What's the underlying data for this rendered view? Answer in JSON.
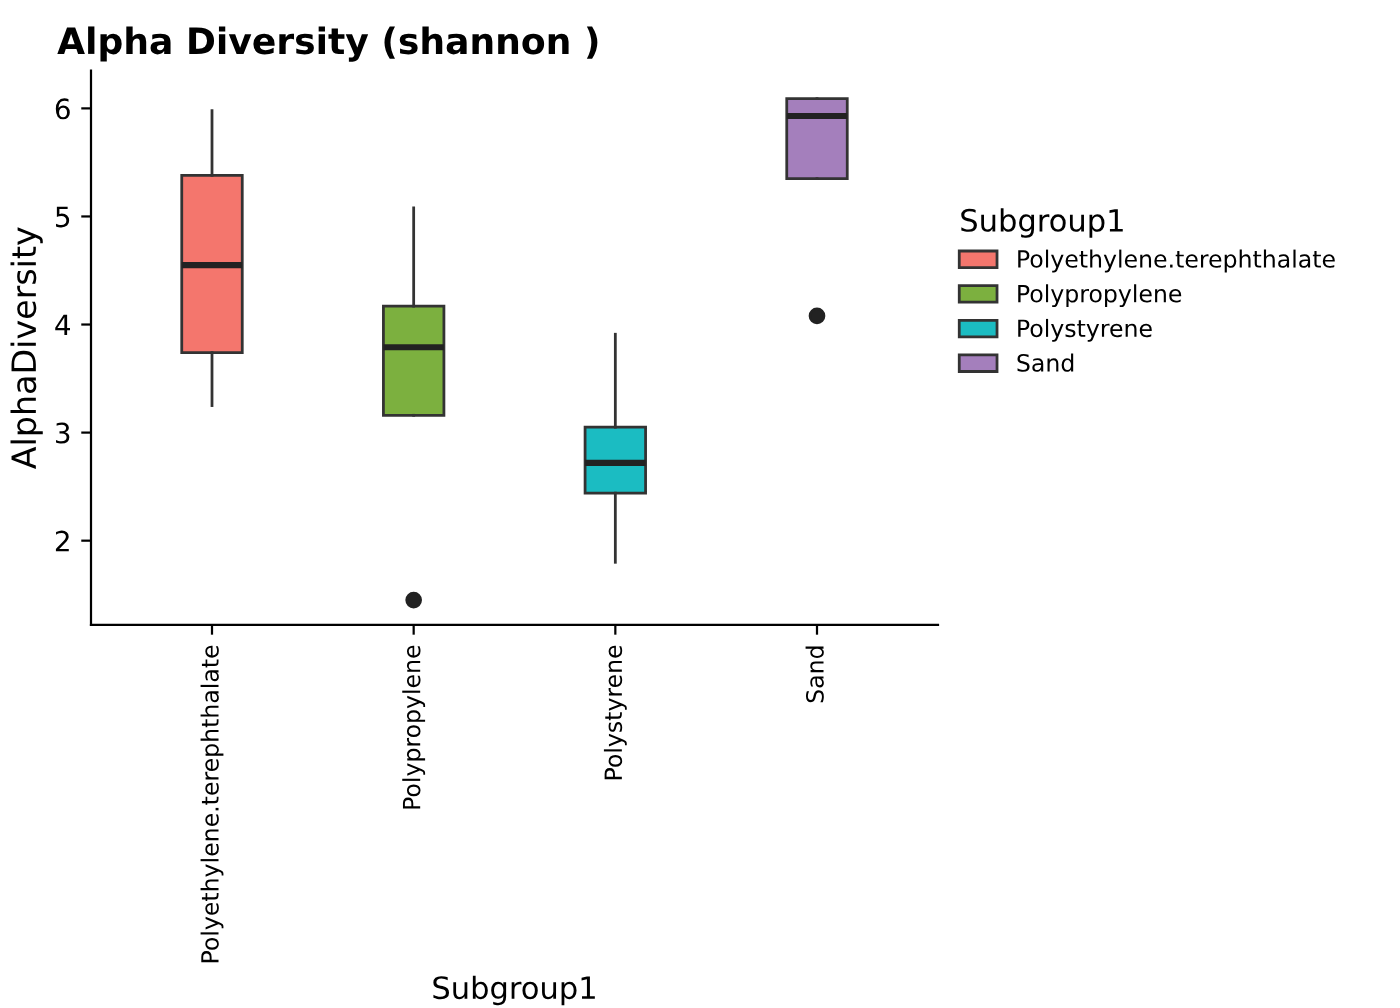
{
  "chart_data": {
    "type": "box",
    "title": "Alpha Diversity (shannon )",
    "xlabel": "Subgroup1",
    "ylabel": "AlphaDiversity",
    "legend_title": "Subgroup1",
    "legend": "right",
    "grid": false,
    "categories": [
      "Polyethylene.terephthalate",
      "Polypropylene",
      "Polystyrene",
      "Sand"
    ],
    "series": [
      {
        "name": "Polyethylene.terephthalate",
        "color": "#f4766d",
        "boxes": [
          {
            "low": 3.25,
            "q1": 3.74,
            "median": 4.55,
            "q3": 5.38,
            "high": 5.98
          },
          null,
          null,
          null
        ]
      },
      {
        "name": "Polypropylene",
        "color": "#7cb03f",
        "boxes": [
          null,
          {
            "low": 3.16,
            "q1": 3.16,
            "median": 3.79,
            "q3": 4.17,
            "high": 5.08,
            "outliers": [
              1.45
            ]
          },
          null,
          null
        ]
      },
      {
        "name": "Polystyrene",
        "color": "#1bbcc2",
        "boxes": [
          null,
          null,
          {
            "low": 1.8,
            "q1": 2.44,
            "median": 2.72,
            "q3": 3.05,
            "high": 3.91
          },
          null
        ]
      },
      {
        "name": "Sand",
        "color": "#a47fbc",
        "boxes": [
          null,
          null,
          null,
          {
            "low": 5.35,
            "q1": 5.35,
            "median": 5.93,
            "q3": 6.09,
            "high": 6.09,
            "outliers": [
              4.08
            ]
          }
        ]
      }
    ],
    "ylim": [
      1.22,
      6.35
    ],
    "yticks": [
      2,
      3,
      4,
      5,
      6
    ]
  }
}
